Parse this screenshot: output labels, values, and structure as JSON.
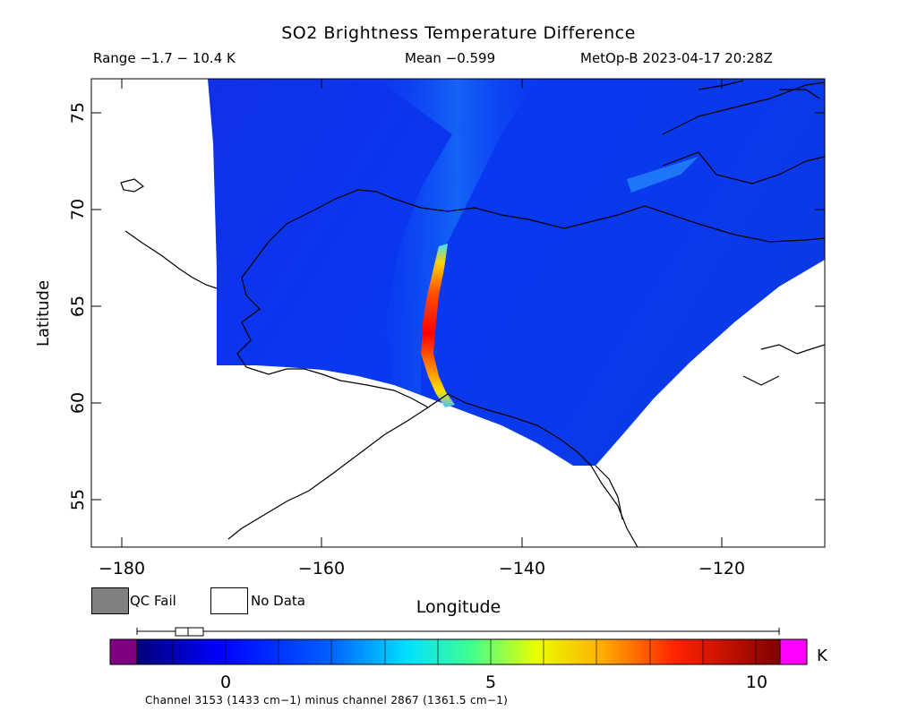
{
  "header": {
    "title": "SO2 Brightness Temperature Difference",
    "range": "Range −1.7 − 10.4 K",
    "mean": "Mean −0.599",
    "satellite_time": "MetOp-B 2023-04-17 20:28Z"
  },
  "map": {
    "x_label": "Longitude",
    "y_label": "Latitude",
    "x_ticks": [
      "−180",
      "−160",
      "−140",
      "−120"
    ],
    "y_ticks": [
      "75",
      "70",
      "65",
      "60",
      "55"
    ],
    "lon_range": [
      -183,
      -110
    ],
    "lat_range": [
      52.5,
      76.5
    ],
    "region": "Alaska / Yukon",
    "plume_feature": "SO2 plume along ~-149.5 longitude, 60-67 N"
  },
  "legend": {
    "qc_fail": "QC Fail",
    "no_data": "No Data",
    "qc_fail_color": "#808080",
    "no_data_color": "#ffffff"
  },
  "colorbar": {
    "unit": "K",
    "tick_labels": [
      "0",
      "5",
      "10"
    ],
    "min": -1.7,
    "max": 10.4,
    "low_color": "#800080",
    "high_color": "#ff00ff"
  },
  "footer": {
    "channels": "Channel 3153 (1433 cm−1) minus channel 2867 (1361.5 cm−1)"
  }
}
